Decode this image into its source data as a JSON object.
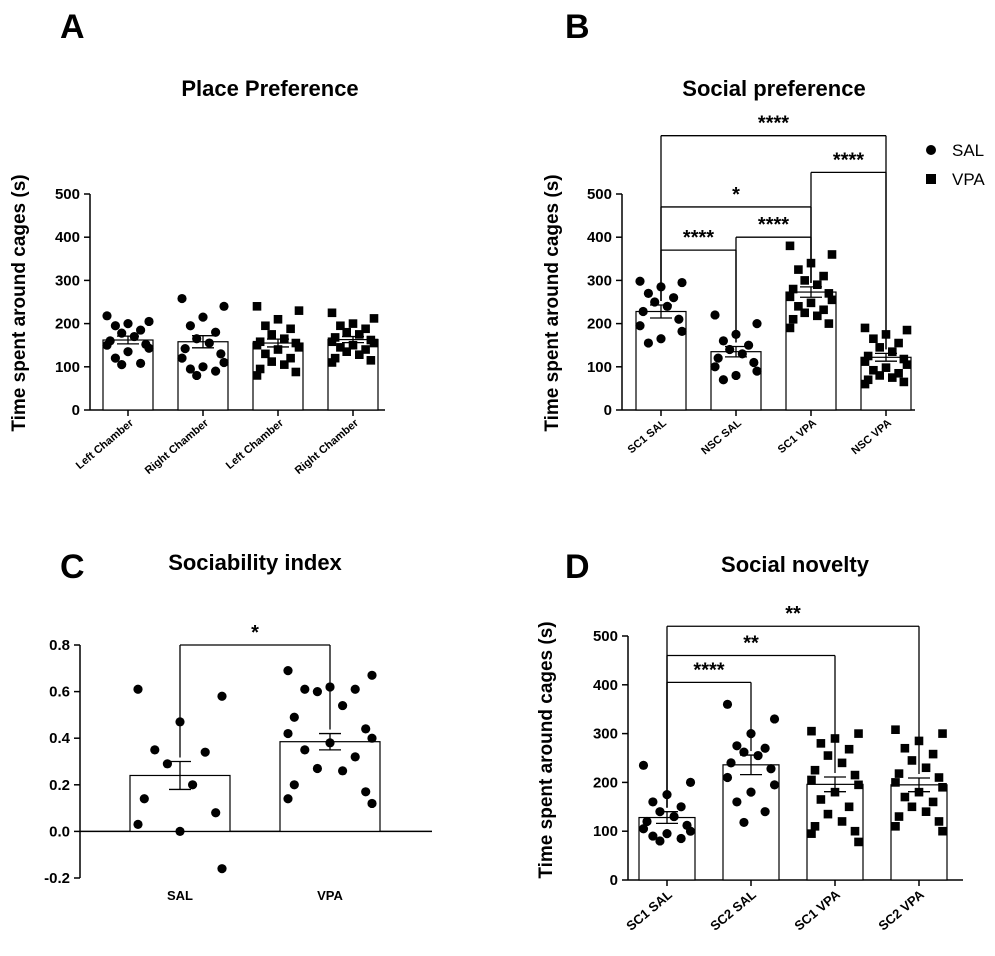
{
  "chart_data": [
    {
      "panel": "A",
      "type": "bar",
      "title": "Place Preference",
      "ylabel": "Time spent around cages (s)",
      "xlabel": "",
      "ylim": [
        0,
        500
      ],
      "yticks": [
        0,
        100,
        200,
        300,
        400,
        500
      ],
      "categories": [
        "Left Chamber",
        "Right Chamber",
        "Left Chamber",
        "Right Chamber"
      ],
      "markers": [
        "circle",
        "circle",
        "square",
        "square"
      ],
      "values": [
        162,
        158,
        155,
        163
      ],
      "sem": [
        9,
        14,
        9,
        7
      ],
      "points": [
        [
          218,
          205,
          200,
          195,
          185,
          178,
          170,
          160,
          152,
          150,
          143,
          135,
          120,
          108,
          105
        ],
        [
          258,
          240,
          215,
          195,
          180,
          165,
          155,
          142,
          130,
          120,
          110,
          100,
          95,
          90,
          80
        ],
        [
          240,
          230,
          210,
          195,
          188,
          175,
          165,
          158,
          155,
          150,
          145,
          140,
          130,
          120,
          112,
          105,
          95,
          88,
          80
        ],
        [
          225,
          212,
          200,
          195,
          188,
          180,
          175,
          168,
          162,
          158,
          155,
          150,
          145,
          140,
          135,
          128,
          120,
          115,
          110
        ]
      ],
      "significance": []
    },
    {
      "panel": "B",
      "type": "bar",
      "title": "Social preference",
      "ylabel": "Time spent around cages (s)",
      "xlabel": "",
      "ylim": [
        0,
        500
      ],
      "yticks": [
        0,
        100,
        200,
        300,
        400,
        500
      ],
      "categories": [
        "SC1 SAL",
        "NSC SAL",
        "SC1 VPA",
        "NSC VPA"
      ],
      "markers": [
        "circle",
        "circle",
        "square",
        "square"
      ],
      "values": [
        228,
        135,
        273,
        122
      ],
      "sem": [
        15,
        12,
        12,
        9
      ],
      "points": [
        [
          298,
          295,
          285,
          270,
          260,
          250,
          240,
          228,
          210,
          195,
          182,
          165,
          155
        ],
        [
          220,
          200,
          175,
          160,
          150,
          140,
          130,
          120,
          110,
          100,
          90,
          80,
          70
        ],
        [
          380,
          360,
          340,
          325,
          310,
          300,
          290,
          280,
          270,
          262,
          255,
          248,
          240,
          232,
          225,
          218,
          210,
          200,
          190
        ],
        [
          190,
          185,
          175,
          165,
          155,
          145,
          135,
          125,
          118,
          112,
          105,
          98,
          92,
          85,
          80,
          75,
          70,
          65,
          60
        ]
      ],
      "significance": [
        {
          "from": 0,
          "to": 1,
          "y": 370,
          "label": "****"
        },
        {
          "from": 1,
          "to": 2,
          "y": 400,
          "label": "****"
        },
        {
          "from": 0,
          "to": 2,
          "y": 470,
          "label": "*"
        },
        {
          "from": 2,
          "to": 3,
          "y": 550,
          "label": "****"
        },
        {
          "from": 0,
          "to": 3,
          "y": 635,
          "label": "****"
        }
      ],
      "legend": {
        "placement": "top-right",
        "entries": [
          {
            "marker": "circle",
            "label": "SAL"
          },
          {
            "marker": "square",
            "label": "VPA"
          }
        ]
      }
    },
    {
      "panel": "C",
      "type": "bar",
      "title": "Sociability index",
      "ylabel": "",
      "xlabel": "",
      "ylim": [
        -0.2,
        0.8
      ],
      "yticks": [
        -0.2,
        0.0,
        0.2,
        0.4,
        0.6,
        0.8
      ],
      "ytick_labels": [
        "-0.2",
        "0.0",
        "0.2",
        "0.4",
        "0.6",
        "0.8"
      ],
      "categories": [
        "SAL",
        "VPA"
      ],
      "markers": [
        "circle",
        "circle"
      ],
      "values": [
        0.24,
        0.385
      ],
      "sem": [
        0.06,
        0.035
      ],
      "points": [
        [
          0.61,
          0.58,
          0.47,
          0.35,
          0.34,
          0.29,
          0.2,
          0.14,
          0.08,
          0.03,
          -0.16,
          0.0
        ],
        [
          0.69,
          0.67,
          0.62,
          0.61,
          0.61,
          0.6,
          0.54,
          0.49,
          0.44,
          0.42,
          0.4,
          0.38,
          0.35,
          0.32,
          0.27,
          0.26,
          0.2,
          0.17,
          0.14,
          0.12
        ]
      ],
      "significance": [
        {
          "from": 0,
          "to": 1,
          "y": 0.8,
          "label": "*"
        }
      ]
    },
    {
      "panel": "D",
      "type": "bar",
      "title": "Social novelty",
      "ylabel": "Time spent around cages (s)",
      "xlabel": "",
      "ylim": [
        0,
        500
      ],
      "yticks": [
        0,
        100,
        200,
        300,
        400,
        500
      ],
      "categories": [
        "SC1 SAL",
        "SC2 SAL",
        "SC1 VPA",
        "SC2 VPA"
      ],
      "markers": [
        "circle",
        "circle",
        "square",
        "square"
      ],
      "values": [
        128,
        236,
        196,
        195
      ],
      "sem": [
        12,
        20,
        15,
        14
      ],
      "points": [
        [
          235,
          200,
          175,
          160,
          150,
          140,
          130,
          120,
          112,
          105,
          100,
          95,
          90,
          85,
          80
        ],
        [
          360,
          330,
          300,
          275,
          270,
          262,
          255,
          240,
          228,
          210,
          195,
          180,
          160,
          140,
          118
        ],
        [
          305,
          300,
          290,
          280,
          268,
          255,
          240,
          225,
          215,
          205,
          195,
          180,
          165,
          150,
          135,
          120,
          110,
          100,
          95,
          78
        ],
        [
          308,
          300,
          285,
          270,
          258,
          245,
          230,
          218,
          210,
          200,
          190,
          180,
          170,
          160,
          150,
          140,
          130,
          120,
          110,
          100
        ]
      ],
      "significance": [
        {
          "from": 0,
          "to": 1,
          "y": 405,
          "label": "****"
        },
        {
          "from": 0,
          "to": 2,
          "y": 460,
          "label": "**"
        },
        {
          "from": 0,
          "to": 3,
          "y": 520,
          "label": "**"
        }
      ]
    }
  ]
}
